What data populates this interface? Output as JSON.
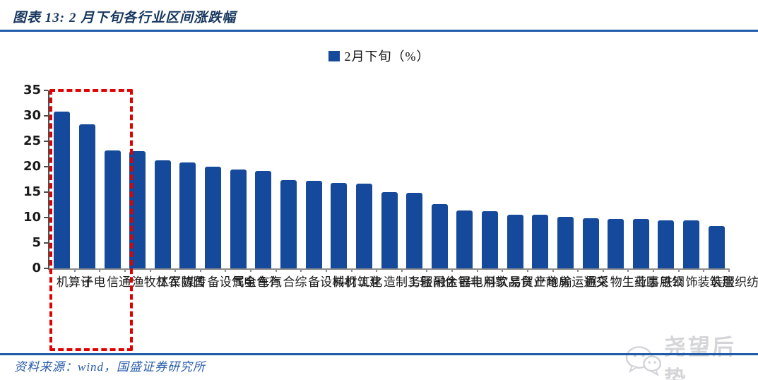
{
  "header": {
    "title": "图表 13:  2 月下旬各行业区间涨跌幅"
  },
  "legend": {
    "label": "2月下旬（%）",
    "swatch_color": "#15499B"
  },
  "chart_data": {
    "type": "bar",
    "title": "2月下旬各行业区间涨跌幅",
    "series_name": "2月下旬（%）",
    "categories": [
      "计算机",
      "电子",
      "通信",
      "农林牧渔",
      "国防军工",
      "传媒",
      "电气设备",
      "有色金属",
      "汽车",
      "综合",
      "机械设备",
      "建筑材料",
      "化工",
      "轻工制造",
      "休闲服务",
      "非银金融",
      "家用电器",
      "食品饮料",
      "商业贸易",
      "房地产",
      "交通运输",
      "采掘",
      "医药生物",
      "公用事业",
      "钢铁",
      "建筑装饰",
      "纺织服装"
    ],
    "values": [
      30.8,
      28.3,
      23.2,
      23.0,
      21.2,
      20.8,
      20.0,
      19.4,
      19.1,
      17.3,
      17.2,
      16.8,
      16.7,
      15.0,
      14.8,
      12.6,
      11.4,
      11.3,
      10.6,
      10.5,
      10.1,
      9.8,
      9.7,
      9.7,
      9.4,
      9.4,
      8.4
    ],
    "ylim": [
      0,
      35
    ],
    "yticks": [
      0,
      5,
      10,
      15,
      20,
      25,
      30,
      35
    ],
    "xlabel": "",
    "ylabel": "",
    "grid": "off",
    "legend_position": "top-center",
    "bar_color": "#15499B",
    "highlight_box": {
      "categories": [
        "计算机",
        "电子",
        "通信"
      ],
      "color": "#DE0202",
      "style": "dashed"
    }
  },
  "footer": {
    "source": "资料来源：wind，国盛证券研究所"
  },
  "watermark": {
    "icon": "wechat-icon",
    "text": "尧望后势"
  }
}
